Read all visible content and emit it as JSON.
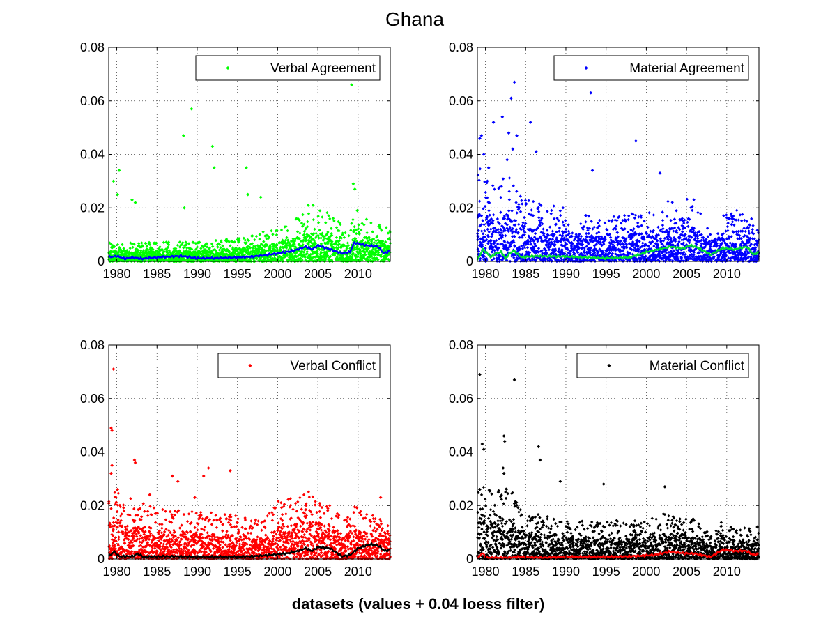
{
  "figure": {
    "title": "Ghana",
    "xlabel": "datasets (values + 0.04 loess filter)"
  },
  "chart_data": [
    {
      "type": "scatter",
      "legend": "Verbal Agreement",
      "legend_placement": "top-right",
      "point_color": "#00ff00",
      "smooth_color": "#0000ff",
      "xlim": [
        1979,
        2014
      ],
      "ylim": [
        0,
        0.08
      ],
      "xticks": [
        "1980",
        "1985",
        "1990",
        "1995",
        "2000",
        "2005",
        "2010"
      ],
      "yticks": [
        "0",
        "0.02",
        "0.04",
        "0.06",
        "0.08"
      ],
      "grid": true,
      "outliers": [
        {
          "x": 1979.6,
          "y": 0.03
        },
        {
          "x": 1980.3,
          "y": 0.034
        },
        {
          "x": 1980.1,
          "y": 0.025
        },
        {
          "x": 1981.9,
          "y": 0.023
        },
        {
          "x": 1982.3,
          "y": 0.022
        },
        {
          "x": 1988.3,
          "y": 0.047
        },
        {
          "x": 1988.4,
          "y": 0.02
        },
        {
          "x": 1989.3,
          "y": 0.057
        },
        {
          "x": 1991.9,
          "y": 0.043
        },
        {
          "x": 1992.1,
          "y": 0.035
        },
        {
          "x": 1996.1,
          "y": 0.035
        },
        {
          "x": 1996.3,
          "y": 0.025
        },
        {
          "x": 1997.9,
          "y": 0.024
        },
        {
          "x": 2003.8,
          "y": 0.021
        },
        {
          "x": 2004.4,
          "y": 0.021
        },
        {
          "x": 2009.2,
          "y": 0.066
        },
        {
          "x": 2009.4,
          "y": 0.029
        },
        {
          "x": 2009.6,
          "y": 0.027
        },
        {
          "x": 2009.9,
          "y": 0.019
        }
      ],
      "baseline": [
        [
          1979,
          0.004
        ],
        [
          1985,
          0.004
        ],
        [
          1990,
          0.004
        ],
        [
          1995,
          0.005
        ],
        [
          2000,
          0.007
        ],
        [
          2003,
          0.01
        ],
        [
          2005,
          0.011
        ],
        [
          2007,
          0.01
        ],
        [
          2008.8,
          0.005
        ],
        [
          2009.3,
          0.009
        ],
        [
          2011,
          0.009
        ],
        [
          2014,
          0.007
        ]
      ],
      "smooth": [
        [
          1979,
          0.0015
        ],
        [
          1980,
          0.002
        ],
        [
          1981,
          0.001
        ],
        [
          1982,
          0.0015
        ],
        [
          1983,
          0.001
        ],
        [
          1985,
          0.0015
        ],
        [
          1988,
          0.002
        ],
        [
          1990,
          0.0012
        ],
        [
          1992,
          0.0012
        ],
        [
          1995,
          0.0015
        ],
        [
          1997,
          0.0018
        ],
        [
          2000,
          0.003
        ],
        [
          2002,
          0.004
        ],
        [
          2003.5,
          0.0055
        ],
        [
          2004.3,
          0.0045
        ],
        [
          2005,
          0.006
        ],
        [
          2006.5,
          0.0045
        ],
        [
          2008,
          0.003
        ],
        [
          2009,
          0.0035
        ],
        [
          2009.5,
          0.007
        ],
        [
          2011,
          0.006
        ],
        [
          2012.5,
          0.0055
        ],
        [
          2013.2,
          0.003
        ],
        [
          2014,
          0.004
        ]
      ]
    },
    {
      "type": "scatter",
      "legend": "Material Agreement",
      "legend_placement": "top-right",
      "point_color": "#0000ff",
      "smooth_color": "#00dd33",
      "xlim": [
        1979,
        2014
      ],
      "ylim": [
        0,
        0.08
      ],
      "xticks": [
        "1980",
        "1985",
        "1990",
        "1995",
        "2000",
        "2005",
        "2010"
      ],
      "yticks": [
        "0",
        "0.02",
        "0.04",
        "0.06",
        "0.08"
      ],
      "grid": true,
      "outliers": [
        {
          "x": 1979.3,
          "y": 0.046
        },
        {
          "x": 1979.5,
          "y": 0.047
        },
        {
          "x": 1979.8,
          "y": 0.04
        },
        {
          "x": 1981.0,
          "y": 0.052
        },
        {
          "x": 1982.1,
          "y": 0.054
        },
        {
          "x": 1983.2,
          "y": 0.061
        },
        {
          "x": 1983.6,
          "y": 0.067
        },
        {
          "x": 1983.4,
          "y": 0.042
        },
        {
          "x": 1982.9,
          "y": 0.048
        },
        {
          "x": 1983.9,
          "y": 0.047
        },
        {
          "x": 1985.6,
          "y": 0.052
        },
        {
          "x": 1986.3,
          "y": 0.041
        },
        {
          "x": 1993.1,
          "y": 0.063
        },
        {
          "x": 1993.3,
          "y": 0.034
        },
        {
          "x": 1998.7,
          "y": 0.045
        },
        {
          "x": 2001.7,
          "y": 0.033
        },
        {
          "x": 1980.4,
          "y": 0.035
        },
        {
          "x": 1982.7,
          "y": 0.038
        }
      ],
      "baseline": [
        [
          1979,
          0.02
        ],
        [
          1981,
          0.016
        ],
        [
          1983,
          0.018
        ],
        [
          1985,
          0.013
        ],
        [
          1990,
          0.011
        ],
        [
          1995,
          0.009
        ],
        [
          2000,
          0.011
        ],
        [
          2003,
          0.013
        ],
        [
          2006,
          0.013
        ],
        [
          2007.5,
          0.007
        ],
        [
          2009,
          0.009
        ],
        [
          2011,
          0.011
        ],
        [
          2014,
          0.008
        ]
      ],
      "smooth": [
        [
          1979,
          0.0005
        ],
        [
          1979.7,
          0.0045
        ],
        [
          1980.2,
          0.003
        ],
        [
          1980.7,
          0.0015
        ],
        [
          1981.3,
          0.003
        ],
        [
          1982,
          0.0035
        ],
        [
          1982.5,
          0.001
        ],
        [
          1983,
          0.003
        ],
        [
          1983.5,
          0.004
        ],
        [
          1984.5,
          0.0015
        ],
        [
          1986,
          0.002
        ],
        [
          1990,
          0.0018
        ],
        [
          1995,
          0.0012
        ],
        [
          1998,
          0.0015
        ],
        [
          2000,
          0.0035
        ],
        [
          2003,
          0.0055
        ],
        [
          2004.5,
          0.0048
        ],
        [
          2005.5,
          0.006
        ],
        [
          2006.5,
          0.005
        ],
        [
          2008,
          0.0025
        ],
        [
          2009.5,
          0.005
        ],
        [
          2011,
          0.0045
        ],
        [
          2012.5,
          0.0055
        ],
        [
          2013.3,
          0.0025
        ],
        [
          2014,
          0.0035
        ]
      ]
    },
    {
      "type": "scatter",
      "legend": "Verbal Conflict",
      "legend_placement": "top-right",
      "point_color": "#ff0000",
      "smooth_color": "#000000",
      "xlim": [
        1979,
        2014
      ],
      "ylim": [
        0,
        0.08
      ],
      "xticks": [
        "1980",
        "1985",
        "1990",
        "1995",
        "2000",
        "2005",
        "2010"
      ],
      "yticks": [
        "0",
        "0.02",
        "0.04",
        "0.06",
        "0.08"
      ],
      "grid": true,
      "outliers": [
        {
          "x": 1979.6,
          "y": 0.071
        },
        {
          "x": 1979.3,
          "y": 0.049
        },
        {
          "x": 1979.4,
          "y": 0.048
        },
        {
          "x": 1979.4,
          "y": 0.035
        },
        {
          "x": 1979.3,
          "y": 0.032
        },
        {
          "x": 1982.2,
          "y": 0.037
        },
        {
          "x": 1982.3,
          "y": 0.036
        },
        {
          "x": 1986.9,
          "y": 0.031
        },
        {
          "x": 1987.6,
          "y": 0.029
        },
        {
          "x": 1989.7,
          "y": 0.023
        },
        {
          "x": 1990.8,
          "y": 0.031
        },
        {
          "x": 1991.4,
          "y": 0.034
        },
        {
          "x": 1994.1,
          "y": 0.033
        },
        {
          "x": 1984.1,
          "y": 0.024
        },
        {
          "x": 1980.1,
          "y": 0.026
        },
        {
          "x": 2012.8,
          "y": 0.023
        }
      ],
      "baseline": [
        [
          1979,
          0.015
        ],
        [
          1981,
          0.013
        ],
        [
          1985,
          0.011
        ],
        [
          1990,
          0.01
        ],
        [
          1995,
          0.009
        ],
        [
          1998,
          0.008
        ],
        [
          2000,
          0.012
        ],
        [
          2003,
          0.014
        ],
        [
          2006,
          0.014
        ],
        [
          2008,
          0.008
        ],
        [
          2009.5,
          0.011
        ],
        [
          2011,
          0.01
        ],
        [
          2014,
          0.008
        ]
      ],
      "smooth": [
        [
          1979,
          0.001
        ],
        [
          1979.7,
          0.0028
        ],
        [
          1980.3,
          0.001
        ],
        [
          1982,
          0.001
        ],
        [
          1982.6,
          0.002
        ],
        [
          1983.3,
          0.0008
        ],
        [
          1986,
          0.001
        ],
        [
          1990,
          0.0008
        ],
        [
          1994,
          0.0008
        ],
        [
          1997,
          0.001
        ],
        [
          1999,
          0.0015
        ],
        [
          2001,
          0.002
        ],
        [
          2002.5,
          0.003
        ],
        [
          2003.5,
          0.004
        ],
        [
          2004.3,
          0.003
        ],
        [
          2005,
          0.0045
        ],
        [
          2006.5,
          0.004
        ],
        [
          2008,
          0.001
        ],
        [
          2009,
          0.0015
        ],
        [
          2010,
          0.004
        ],
        [
          2011.5,
          0.0055
        ],
        [
          2012.5,
          0.005
        ],
        [
          2013.3,
          0.003
        ],
        [
          2014,
          0.0035
        ]
      ]
    },
    {
      "type": "scatter",
      "legend": "Material Conflict",
      "legend_placement": "top-right",
      "point_color": "#000000",
      "smooth_color": "#ff0000",
      "xlim": [
        1979,
        2014
      ],
      "ylim": [
        0,
        0.08
      ],
      "xticks": [
        "1980",
        "1985",
        "1990",
        "1995",
        "2000",
        "2005",
        "2010"
      ],
      "yticks": [
        "0",
        "0.02",
        "0.04",
        "0.06",
        "0.08"
      ],
      "grid": true,
      "outliers": [
        {
          "x": 1979.3,
          "y": 0.069
        },
        {
          "x": 1979.6,
          "y": 0.043
        },
        {
          "x": 1979.8,
          "y": 0.041
        },
        {
          "x": 1982.3,
          "y": 0.046
        },
        {
          "x": 1982.4,
          "y": 0.044
        },
        {
          "x": 1982.2,
          "y": 0.034
        },
        {
          "x": 1982.3,
          "y": 0.032
        },
        {
          "x": 1983.6,
          "y": 0.067
        },
        {
          "x": 1986.6,
          "y": 0.042
        },
        {
          "x": 1986.8,
          "y": 0.037
        },
        {
          "x": 1989.3,
          "y": 0.029
        },
        {
          "x": 1994.7,
          "y": 0.028
        },
        {
          "x": 2002.3,
          "y": 0.027
        },
        {
          "x": 1979.3,
          "y": 0.026
        },
        {
          "x": 1981.6,
          "y": 0.025
        },
        {
          "x": 2013.8,
          "y": 0.012
        }
      ],
      "baseline": [
        [
          1979,
          0.018
        ],
        [
          1981,
          0.014
        ],
        [
          1983,
          0.015
        ],
        [
          1985,
          0.01
        ],
        [
          1990,
          0.008
        ],
        [
          1995,
          0.008
        ],
        [
          2000,
          0.008
        ],
        [
          2003,
          0.01
        ],
        [
          2006,
          0.009
        ],
        [
          2008,
          0.005
        ],
        [
          2009.5,
          0.008
        ],
        [
          2011,
          0.007
        ],
        [
          2014,
          0.006
        ]
      ],
      "smooth": [
        [
          1979,
          0.0003
        ],
        [
          1979.6,
          0.0022
        ],
        [
          1980.2,
          0.0005
        ],
        [
          1983,
          0.0005
        ],
        [
          1984,
          0.0008
        ],
        [
          1987,
          0.0005
        ],
        [
          1990,
          0.0008
        ],
        [
          1995,
          0.0008
        ],
        [
          1998,
          0.001
        ],
        [
          2001,
          0.0015
        ],
        [
          2003,
          0.0028
        ],
        [
          2004.5,
          0.0022
        ],
        [
          2006,
          0.002
        ],
        [
          2008,
          0.0008
        ],
        [
          2009.5,
          0.0035
        ],
        [
          2011,
          0.003
        ],
        [
          2012.5,
          0.003
        ],
        [
          2013.3,
          0.0015
        ],
        [
          2014,
          0.002
        ]
      ]
    }
  ]
}
